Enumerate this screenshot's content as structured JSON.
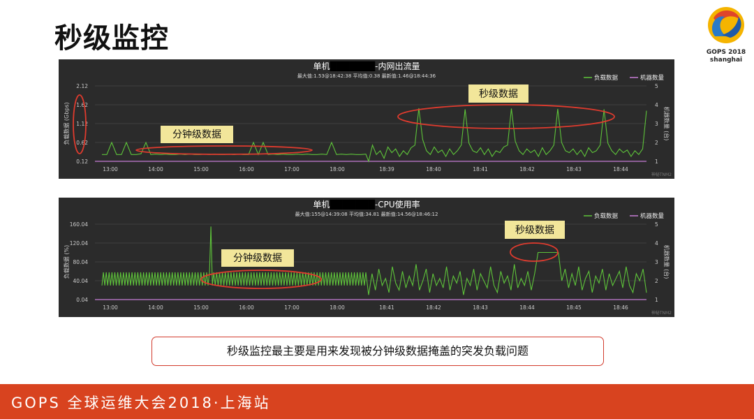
{
  "page": {
    "title": "秒级监控",
    "logo_line1": "GOPS 2018",
    "logo_line2": "shanghai",
    "callout": "秒级监控最主要是用来发现被分钟级数据掩盖的突发负载问题",
    "footer": "GOPS 全球运维大会2018·上海站",
    "colors": {
      "accent": "#d8431f",
      "series_load": "#5ec43a",
      "series_machines": "#c77dd6",
      "chart_bg": "#2b2b2b",
      "annotation": "#e03b2e",
      "label_bg": "#f2e69a"
    }
  },
  "chart_data": [
    {
      "type": "line",
      "title_prefix": "单机",
      "title_suffix": "-内网出流量",
      "subtitle": "最大值:1.53@18:42:38 平均值:0.38 最新值:1.46@18:44:36",
      "ylabel": "负载数据 (Gbps)",
      "y2label": "机器数量 (台)",
      "yticks": [
        "2.12",
        "1.62",
        "1.12",
        "0.62",
        "0.12"
      ],
      "ylim": [
        0.12,
        2.12
      ],
      "y2ticks": [
        "5",
        "4",
        "3",
        "2",
        "1"
      ],
      "y2lim": [
        1,
        5
      ],
      "legend": [
        "负载数据",
        "机器数量"
      ],
      "watermark": "神秘TNM2",
      "x_minute_ticks": [
        "13:00",
        "14:00",
        "15:00",
        "16:00",
        "17:00",
        "18:00"
      ],
      "x_second_ticks": [
        "18:39",
        "18:40",
        "18:41",
        "18:42",
        "18:43",
        "18:44"
      ],
      "annotations": [
        "分钟级数据",
        "秒级数据"
      ],
      "series": [
        {
          "name": "负载数据",
          "minute_values": [
            0.3,
            0.3,
            0.62,
            0.3,
            0.3,
            0.62,
            0.3,
            0.3,
            0.32,
            0.62,
            0.3,
            0.31,
            0.3,
            0.31,
            0.3,
            0.3,
            0.31,
            0.3,
            0.31,
            0.3,
            0.3,
            0.31,
            0.3,
            0.31,
            0.3,
            0.3,
            0.31,
            0.3,
            0.31,
            0.3,
            0.3,
            0.62,
            0.3,
            0.62,
            0.3,
            0.31,
            0.3,
            0.31,
            0.3,
            0.3,
            0.31,
            0.3,
            0.31,
            0.3,
            0.3,
            0.31,
            0.3,
            0.62,
            0.3,
            0.31,
            0.3,
            0.31,
            0.3,
            0.3,
            0.31
          ],
          "second_values": [
            0.12,
            0.55,
            0.3,
            0.4,
            0.2,
            0.5,
            0.35,
            0.45,
            0.25,
            0.4,
            0.3,
            0.48,
            0.55,
            1.53,
            0.7,
            0.4,
            0.3,
            0.5,
            0.35,
            0.42,
            0.25,
            0.45,
            0.3,
            0.4,
            0.55,
            1.5,
            0.6,
            0.4,
            0.35,
            0.48,
            0.3,
            0.45,
            0.25,
            0.4,
            0.35,
            0.5,
            0.55,
            1.52,
            0.65,
            0.4,
            0.3,
            0.45,
            0.35,
            0.42,
            0.25,
            0.48,
            0.3,
            0.4,
            0.55,
            1.51,
            0.62,
            0.4,
            0.35,
            0.45,
            0.3,
            0.42,
            0.25,
            0.48,
            0.35,
            0.4,
            0.55,
            1.5,
            0.6,
            0.4,
            0.3,
            0.45,
            0.35,
            0.42,
            0.25,
            0.4,
            0.3,
            0.45,
            1.46
          ]
        },
        {
          "name": "机器数量",
          "constant_value": 1
        }
      ]
    },
    {
      "type": "line",
      "title_prefix": "单机",
      "title_suffix": "-CPU使用率",
      "subtitle": "最大值:155@14:39:08 平均值:34.81 最新值:14.56@18:46:12",
      "ylabel": "负载数据 (%)",
      "y2label": "机器数量 (台)",
      "yticks": [
        "160.04",
        "120.04",
        "80.04",
        "40.04",
        "0.04"
      ],
      "ylim": [
        0.04,
        160.04
      ],
      "y2ticks": [
        "5",
        "4",
        "3",
        "2",
        "1"
      ],
      "y2lim": [
        1,
        5
      ],
      "legend": [
        "负载数据",
        "机器数量"
      ],
      "watermark": "神秘TNM2",
      "x_minute_ticks": [
        "13:00",
        "14:00",
        "15:00",
        "16:00",
        "17:00",
        "18:00"
      ],
      "x_second_ticks": [
        "18:41",
        "18:42",
        "18:43",
        "18:44",
        "18:45",
        "18:46"
      ],
      "annotations": [
        "分钟级数据",
        "秒级数据"
      ],
      "series": [
        {
          "name": "负载数据",
          "minute_values": [
            30,
            58,
            30,
            58,
            30,
            58,
            30,
            58,
            30,
            58,
            30,
            58,
            30,
            58,
            30,
            58,
            30,
            58,
            30,
            58,
            30,
            58,
            30,
            58,
            30,
            58,
            30,
            58,
            30,
            58,
            30,
            58,
            30,
            58,
            30,
            58,
            30,
            58,
            30,
            58,
            30,
            58,
            30,
            58,
            30,
            58,
            30,
            58,
            30,
            58,
            30,
            58,
            30,
            58,
            30,
            58,
            30,
            58,
            30,
            58,
            30,
            58,
            30,
            58,
            30,
            58,
            30,
            58,
            30,
            58,
            30,
            58,
            30,
            58,
            30,
            58,
            155,
            30,
            58,
            30,
            58,
            30,
            58,
            30,
            58,
            30,
            58,
            30,
            58,
            30,
            58,
            30,
            58,
            30,
            58,
            30,
            58,
            30,
            58,
            30,
            58,
            30,
            58,
            30,
            58,
            30,
            58,
            30,
            58,
            30,
            58,
            30,
            58,
            30,
            58,
            30,
            58,
            30,
            58,
            30,
            58,
            30,
            58,
            30,
            58,
            30,
            58,
            30,
            58,
            30,
            58,
            30,
            58,
            30,
            58,
            30,
            58,
            30,
            58,
            30,
            58,
            30,
            58,
            30,
            58,
            30,
            58,
            30,
            58,
            30,
            58,
            30,
            58,
            30,
            58,
            30,
            58,
            30,
            58,
            30,
            58,
            30,
            58,
            30,
            58,
            30,
            58,
            30,
            58,
            30,
            58,
            30,
            58,
            30,
            58,
            30,
            58,
            30,
            58,
            30,
            58,
            30,
            58,
            30,
            58
          ],
          "second_values": [
            10,
            55,
            20,
            65,
            30,
            45,
            15,
            70,
            35,
            20,
            60,
            25,
            50,
            30,
            75,
            20,
            40,
            65,
            15,
            55,
            30,
            45,
            25,
            70,
            20,
            50,
            35,
            60,
            10,
            45,
            30,
            65,
            20,
            55,
            40,
            25,
            70,
            30,
            15,
            60,
            35,
            50,
            20,
            75,
            25,
            45,
            30,
            60,
            20,
            55,
            100,
            100,
            100,
            100,
            100,
            100,
            100,
            40,
            65,
            25,
            55,
            30,
            70,
            20,
            45,
            60,
            15,
            50,
            35,
            65,
            20,
            55,
            30,
            45,
            60,
            25,
            70,
            30,
            15,
            55,
            40,
            65,
            14.56
          ]
        },
        {
          "name": "机器数量",
          "constant_value": 1
        }
      ]
    }
  ]
}
